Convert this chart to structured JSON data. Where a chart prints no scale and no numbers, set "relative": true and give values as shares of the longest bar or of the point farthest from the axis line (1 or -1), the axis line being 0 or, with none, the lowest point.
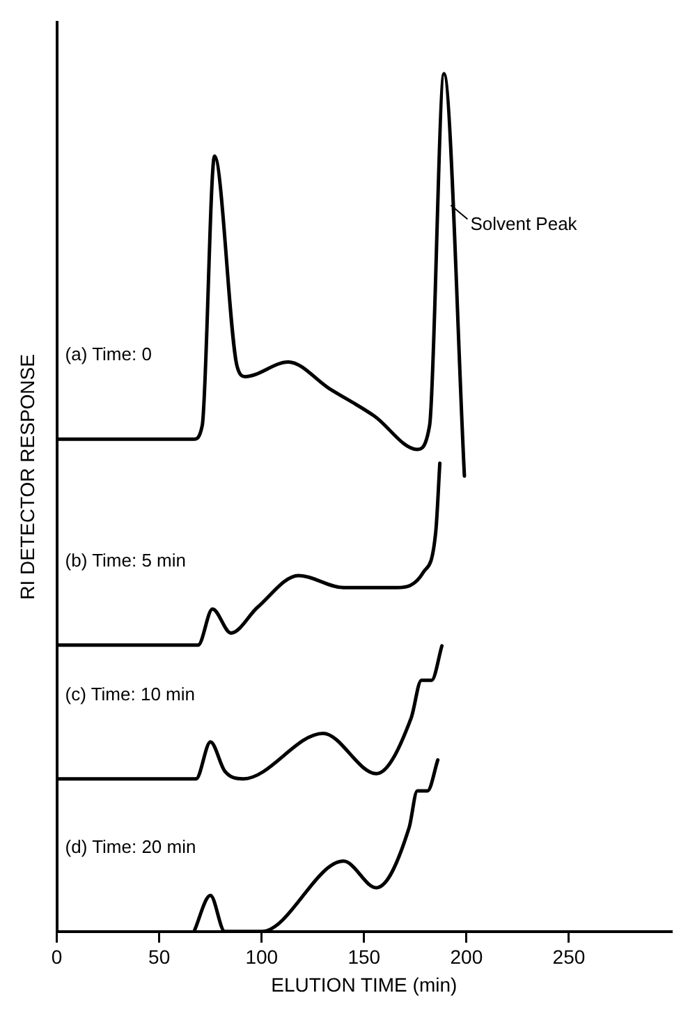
{
  "chart_data": {
    "type": "line",
    "relative": true,
    "xlabel": "ELUTION TIME (min)",
    "ylabel": "RI DETECTOR RESPONSE",
    "xlim": [
      0,
      300
    ],
    "xticks": [
      0,
      50,
      100,
      150,
      200,
      250
    ],
    "grid": false,
    "legend": false,
    "marker": "none",
    "line_style": "solid",
    "annotations": [
      {
        "text": "Solvent Peak",
        "x": 191,
        "y": 0.85
      }
    ],
    "series": [
      {
        "name": "(a) Time: 0",
        "color": "#000000",
        "x": [
          0,
          67,
          71,
          77,
          88,
          92,
          113,
          133,
          155,
          176,
          182,
          189,
          199
        ],
        "values": [
          0.574,
          0.574,
          0.59,
          0.904,
          0.659,
          0.647,
          0.664,
          0.633,
          0.601,
          0.562,
          0.59,
          1,
          0.531
        ]
      },
      {
        "name": "(b) Time: 5 min",
        "color": "#000000",
        "x": [
          0,
          69,
          76,
          85,
          98,
          118,
          140,
          166,
          179,
          185,
          187
        ],
        "values": [
          0.334,
          0.334,
          0.376,
          0.348,
          0.378,
          0.415,
          0.401,
          0.401,
          0.419,
          0.466,
          0.546
        ]
      },
      {
        "name": "(c) Time: 10 min",
        "color": "#000000",
        "x": [
          0,
          68,
          75,
          82,
          91,
          130,
          156,
          173,
          178,
          183,
          188
        ],
        "values": [
          0.178,
          0.178,
          0.221,
          0.187,
          0.178,
          0.231,
          0.184,
          0.249,
          0.293,
          0.293,
          0.333
        ]
      },
      {
        "name": "(d) Time: 20 min",
        "color": "#000000",
        "x": [
          67,
          75,
          82,
          100,
          140,
          156,
          172,
          176,
          181,
          186
        ],
        "values": [
          0,
          0.042,
          0,
          0,
          0.082,
          0.051,
          0.121,
          0.164,
          0.164,
          0.2
        ]
      }
    ]
  }
}
